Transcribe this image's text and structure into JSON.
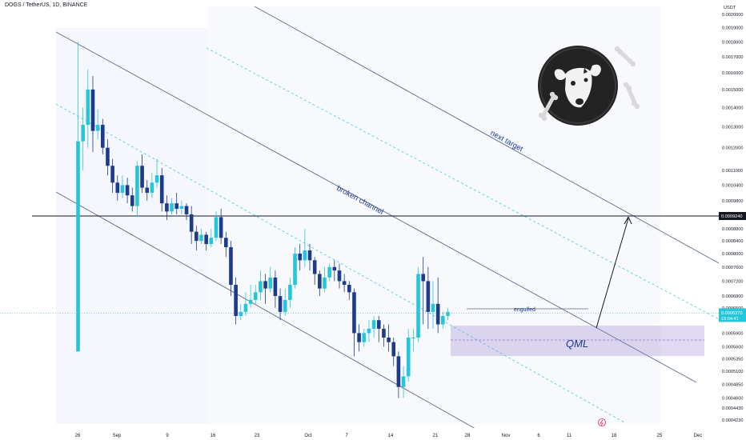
{
  "header": {
    "title": "DOGS / TetherUS, 1D, BINANCE"
  },
  "axis": {
    "currency": "USDT"
  },
  "colors": {
    "up": "#26c6da",
    "down": "#1e3a8a",
    "channel": "#5b6b8c",
    "zone": "#9575cd",
    "label": "#1e3a8a"
  },
  "price_tag": {
    "value": "0.0006370",
    "countdown": "15:04:41"
  },
  "level_tag": {
    "value": "0.0009240"
  },
  "annotations": {
    "broken": "broken channel",
    "next": "next target",
    "engulfed": "engulfed",
    "qml": "QML"
  },
  "logo": {
    "name": "dogs-logo-icon"
  },
  "chart_data": {
    "type": "candlestick",
    "title": "DOGS / TetherUS, 1D, BINANCE",
    "y_scale": "log",
    "yticks": [
      "0.0020000",
      "0.0019000",
      "0.0018000",
      "0.0017000",
      "0.0016000",
      "0.0015000",
      "0.0014000",
      "0.0013000",
      "0.0012000",
      "0.0011000",
      "0.0010400",
      "0.0009800",
      "0.0009240",
      "0.0008800",
      "0.0008400",
      "0.0008000",
      "0.0007600",
      "0.0007200",
      "0.0006800",
      "0.0006500",
      "0.0006370",
      "0.0005900",
      "0.0005600",
      "0.0005350",
      "0.0005100",
      "0.0004850",
      "0.0004600",
      "0.0004430",
      "0.0004230"
    ],
    "xticks": [
      "26",
      "Sep",
      "9",
      "16",
      "23",
      "Oct",
      "7",
      "14",
      "21",
      "28",
      "Nov",
      "6",
      "11",
      "18",
      "25",
      "Dec"
    ],
    "horizontal_level": 0.000924,
    "current_price": 0.000637,
    "candles": [
      [
        0.00055,
        0.00123,
        0.0018,
        0.00055
      ],
      [
        0.00123,
        0.00131,
        0.0014,
        0.0011
      ],
      [
        0.00131,
        0.0015,
        0.00162,
        0.0012
      ],
      [
        0.0015,
        0.00128,
        0.00158,
        0.00118
      ],
      [
        0.00128,
        0.00131,
        0.00139,
        0.00124
      ],
      [
        0.00131,
        0.0012,
        0.00134,
        0.00117
      ],
      [
        0.0012,
        0.00112,
        0.00124,
        0.00108
      ],
      [
        0.00112,
        0.00105,
        0.00115,
        0.00101
      ],
      [
        0.00105,
        0.00101,
        0.00108,
        0.00098
      ],
      [
        0.00101,
        0.00104,
        0.00108,
        0.00099
      ],
      [
        0.00104,
        0.001,
        0.00107,
        0.00097
      ],
      [
        0.001,
        0.00096,
        0.00103,
        0.00094
      ],
      [
        0.00096,
        0.00112,
        0.00114,
        0.00092
      ],
      [
        0.00112,
        0.00103,
        0.00117,
        0.00101
      ],
      [
        0.00103,
        0.00101,
        0.00106,
        0.00098
      ],
      [
        0.00101,
        0.00105,
        0.00109,
        0.00099
      ],
      [
        0.00105,
        0.00108,
        0.00115,
        0.00103
      ],
      [
        0.00108,
        0.00097,
        0.00111,
        0.00094
      ],
      [
        0.00097,
        0.00094,
        0.001,
        0.00091
      ],
      [
        0.00094,
        0.00097,
        0.00099,
        0.00093
      ],
      [
        0.00097,
        0.00095,
        0.00101,
        0.00093
      ],
      [
        0.00095,
        0.00096,
        0.00098,
        0.00093
      ],
      [
        0.00096,
        0.00093,
        0.00097,
        0.00091
      ],
      [
        0.00093,
        0.00087,
        0.00096,
        0.00083
      ],
      [
        0.00087,
        0.00084,
        0.00089,
        0.00081
      ],
      [
        0.00084,
        0.00086,
        0.00088,
        0.00083
      ],
      [
        0.00086,
        0.00083,
        0.00087,
        0.00081
      ],
      [
        0.00083,
        0.00085,
        0.00088,
        0.00082
      ],
      [
        0.00085,
        0.00092,
        0.00094,
        0.00084
      ],
      [
        0.00092,
        0.00085,
        0.00095,
        0.00083
      ],
      [
        0.00085,
        0.00082,
        0.00087,
        0.00079
      ],
      [
        0.00082,
        0.00071,
        0.00084,
        0.00068
      ],
      [
        0.00071,
        0.00063,
        0.00073,
        0.00061
      ],
      [
        0.00063,
        0.00064,
        0.00066,
        0.00062
      ],
      [
        0.00064,
        0.00066,
        0.00069,
        0.00063
      ],
      [
        0.00066,
        0.00067,
        0.00071,
        0.00065
      ],
      [
        0.00067,
        0.00069,
        0.00071,
        0.00066
      ],
      [
        0.00069,
        0.00072,
        0.00075,
        0.00067
      ],
      [
        0.00072,
        0.0007,
        0.00074,
        0.00066
      ],
      [
        0.0007,
        0.00073,
        0.00076,
        0.00069
      ],
      [
        0.00073,
        0.00068,
        0.00075,
        0.00065
      ],
      [
        0.00068,
        0.00064,
        0.0007,
        0.00062
      ],
      [
        0.00064,
        0.00067,
        0.0007,
        0.00063
      ],
      [
        0.00067,
        0.00071,
        0.00073,
        0.00065
      ],
      [
        0.00071,
        0.0008,
        0.00082,
        0.0007
      ],
      [
        0.0008,
        0.00078,
        0.00083,
        0.00075
      ],
      [
        0.00078,
        0.00081,
        0.00088,
        0.00076
      ],
      [
        0.00081,
        0.00078,
        0.00083,
        0.00075
      ],
      [
        0.00078,
        0.00074,
        0.00079,
        0.00071
      ],
      [
        0.00074,
        0.0007,
        0.00075,
        0.00068
      ],
      [
        0.0007,
        0.00073,
        0.00076,
        0.00069
      ],
      [
        0.00073,
        0.00076,
        0.00077,
        0.00072
      ],
      [
        0.00076,
        0.00075,
        0.00078,
        0.00072
      ],
      [
        0.00075,
        0.00072,
        0.00077,
        0.0007
      ],
      [
        0.00072,
        0.00071,
        0.00074,
        0.00069
      ],
      [
        0.00071,
        0.00069,
        0.00072,
        0.00067
      ],
      [
        0.00069,
        0.00059,
        0.0007,
        0.00054
      ],
      [
        0.00059,
        0.00057,
        0.00061,
        0.00055
      ],
      [
        0.00057,
        0.00059,
        0.0006,
        0.00056
      ],
      [
        0.00059,
        0.0006,
        0.00062,
        0.00057
      ],
      [
        0.0006,
        0.00062,
        0.00063,
        0.00058
      ],
      [
        0.00062,
        0.0006,
        0.00063,
        0.00057
      ],
      [
        0.0006,
        0.00058,
        0.00061,
        0.00056
      ],
      [
        0.00058,
        0.00057,
        0.00061,
        0.00055
      ],
      [
        0.00057,
        0.00054,
        0.00058,
        0.00052
      ],
      [
        0.00054,
        0.00048,
        0.00055,
        0.00046
      ],
      [
        0.00048,
        0.0005,
        0.00052,
        0.00046
      ],
      [
        0.0005,
        0.00058,
        0.0006,
        0.00049
      ],
      [
        0.00058,
        0.00058,
        0.0006,
        0.00055
      ],
      [
        0.00058,
        0.00074,
        0.00076,
        0.00057
      ],
      [
        0.00074,
        0.00072,
        0.00079,
        0.00061
      ],
      [
        0.00072,
        0.00064,
        0.00076,
        0.0006
      ],
      [
        0.00064,
        0.00066,
        0.00072,
        0.0006
      ],
      [
        0.00066,
        0.00061,
        0.00073,
        0.00059
      ],
      [
        0.00061,
        0.00063,
        0.00064,
        0.0006
      ],
      [
        0.00063,
        0.00064,
        0.00065,
        0.00062
      ]
    ]
  }
}
